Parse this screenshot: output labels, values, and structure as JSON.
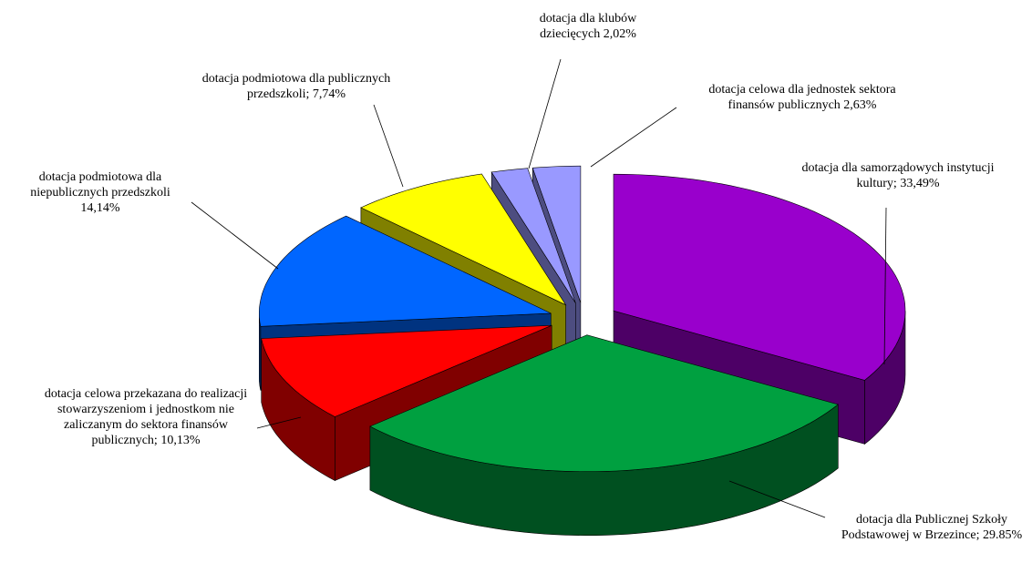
{
  "chart_data": {
    "type": "pie3d",
    "categories": [
      "dotacja dla samorządowych instytucji kultury;",
      "dotacja dla Publicznej Szkoły Podstawowej w Brzezince;",
      "dotacja celowa przekazana do realizacji stowarzyszeniom i jednostkom nie zaliczanym do sektora finansów publicznych;",
      "dotacja podmiotowa dla niepublicznych przedszkoli",
      "dotacja podmiotowa dla publicznych przedszkoli;",
      "dotacja dla klubów dziecięcych",
      "dotacja celowa dla jednostek sektora finansów publicznych"
    ],
    "values": [
      33.49,
      29.85,
      10.13,
      14.14,
      7.74,
      2.02,
      2.63
    ],
    "value_labels": [
      "33,49%",
      "29.85%",
      "10,13%",
      "14,14%",
      "7,74%",
      "2,02%",
      "2,63%"
    ],
    "colors": [
      "#9900cc",
      "#00a040",
      "#ff0000",
      "#0066ff",
      "#ffff00",
      "#9999ff",
      "#9999ff"
    ]
  }
}
